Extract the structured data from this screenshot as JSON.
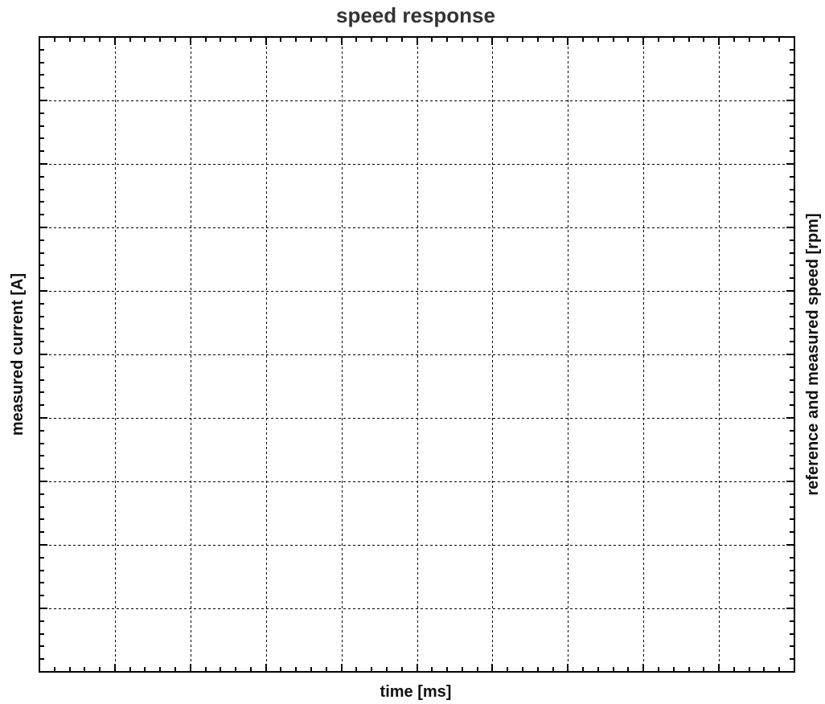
{
  "chart_data": {
    "type": "line",
    "title": "speed response",
    "xlabel": "time [ms]",
    "ylabel": "measured current [A]",
    "y2label": "reference and measured speed [rpm]",
    "series": [],
    "grid": true,
    "grid_style": "dashed",
    "x_major_divisions": 10,
    "y_major_divisions": 10,
    "minor_ticks_per_major": 4,
    "tick_labels_shown": false,
    "legend": "none",
    "colors": {
      "background": "#ffffff",
      "frame": "#000000",
      "grid": "#000000",
      "title": "#333333",
      "labels": "#111111"
    }
  }
}
